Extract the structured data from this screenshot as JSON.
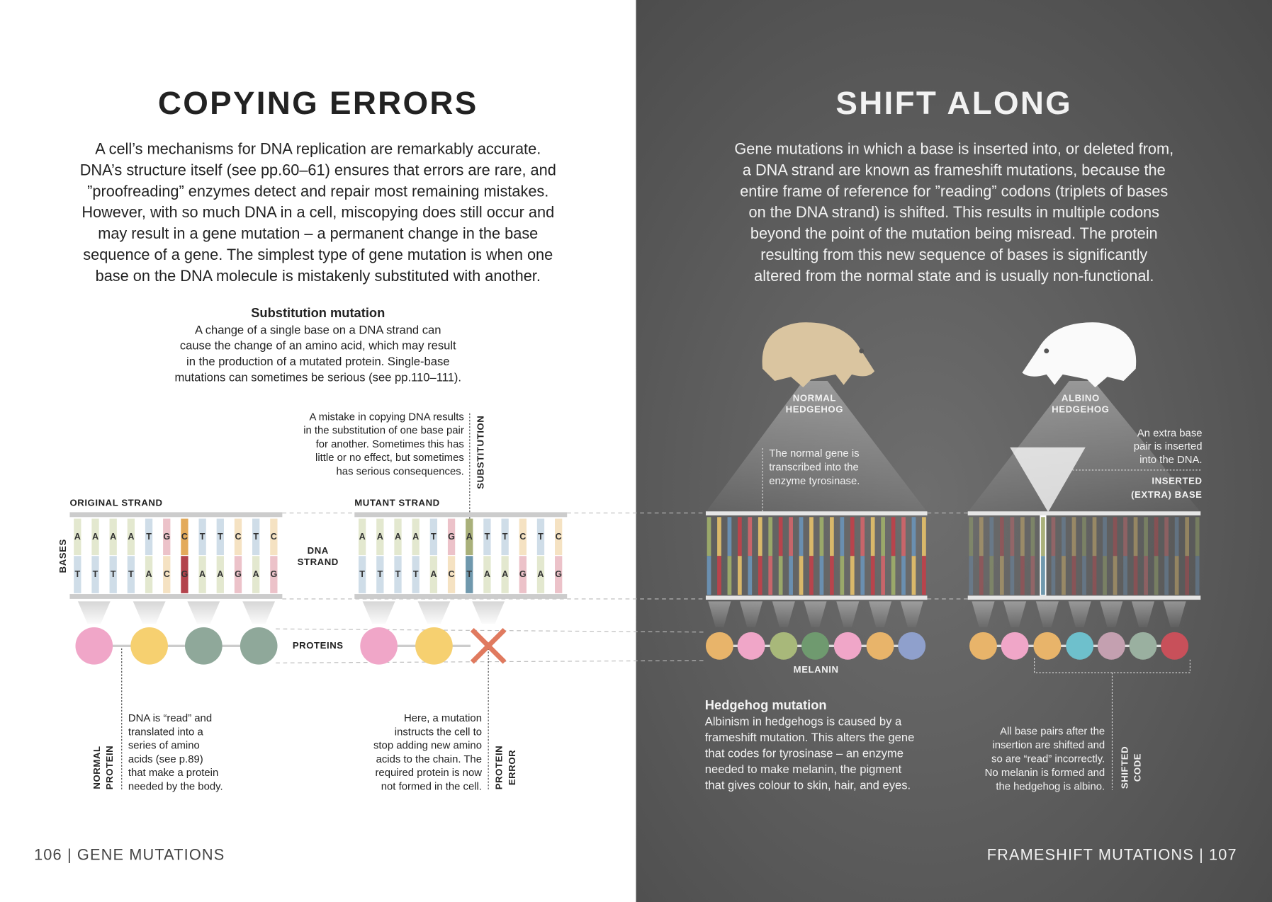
{
  "left_page": {
    "title": "COPYING ERRORS",
    "intro": [
      "A cell’s mechanisms for DNA replication are remarkably accurate.",
      "DNA’s structure itself (see pp.60–61) ensures that errors are rare, and",
      "”proofreading” enzymes detect and repair most remaining mistakes.",
      "However, with so much DNA in a cell, miscopying does still occur and",
      "may result in a gene mutation – a permanent change in the base",
      "sequence of a gene. The simplest type of gene mutation is when one",
      "base on the DNA molecule is mistakenly substituted with another."
    ],
    "substitution_mutation": {
      "heading": "Substitution mutation",
      "text": [
        "A change of a single base on a DNA strand can",
        "cause the change of an amino acid, which may result",
        "in the production of a mutated protein. Single-base",
        "mutations can sometimes be serious (see pp.110–111)."
      ]
    },
    "substitution_note": {
      "label": "SUBSTITUTION",
      "text": [
        "A mistake in copying DNA results",
        "in the substitution of one base pair",
        "for another. Sometimes this has",
        "little or no effect, but sometimes",
        "has serious consequences."
      ]
    },
    "original_strand": {
      "label": "ORIGINAL STRAND",
      "top": [
        "A",
        "A",
        "A",
        "A",
        "T",
        "G",
        "C",
        "T",
        "T",
        "C",
        "T",
        "C"
      ],
      "bottom": [
        "T",
        "T",
        "T",
        "T",
        "A",
        "C",
        "G",
        "A",
        "A",
        "G",
        "A",
        "G"
      ]
    },
    "mutant_strand": {
      "label": "MUTANT STRAND",
      "top": [
        "A",
        "A",
        "A",
        "A",
        "T",
        "G",
        "A",
        "T",
        "T",
        "C",
        "T",
        "C"
      ],
      "bottom": [
        "T",
        "T",
        "T",
        "T",
        "A",
        "C",
        "T",
        "A",
        "A",
        "G",
        "A",
        "G"
      ]
    },
    "bases_label": "BASES",
    "dna_strand_label": [
      "DNA",
      "STRAND"
    ],
    "proteins_label": "PROTEINS",
    "normal_protein": {
      "label": [
        "NORMAL",
        "PROTEIN"
      ],
      "text": [
        "DNA is “read” and",
        "translated into a",
        "series of amino",
        "acids (see p.89)",
        "that make a protein",
        "needed by the body."
      ]
    },
    "protein_error": {
      "label": [
        "PROTEIN",
        "ERROR"
      ],
      "text": [
        "Here, a mutation",
        "instructs the cell to",
        "stop adding new amino",
        "acids to the chain. The",
        "required protein is now",
        "not formed in the cell."
      ]
    },
    "footer": "106 | GENE MUTATIONS"
  },
  "right_page": {
    "title": "SHIFT ALONG",
    "intro": [
      "Gene mutations in which a base is inserted into, or deleted from,",
      "a DNA strand are known as frameshift mutations, because the",
      "entire frame of reference for ”reading” codons (triplets of bases",
      "on the DNA strand) is shifted. This results in multiple codons",
      "beyond the point of the mutation being misread. The protein",
      "resulting from this new sequence of bases is significantly",
      "altered from the normal state and is usually non-functional."
    ],
    "normal_hedgehog": [
      "NORMAL",
      "HEDGEHOG"
    ],
    "albino_hedgehog": [
      "ALBINO",
      "HEDGEHOG"
    ],
    "normal_gene_note": [
      "The normal gene is",
      "transcribed into the",
      "enzyme tyrosinase."
    ],
    "extra_base_note": [
      "An extra base",
      "pair is inserted",
      "into the DNA."
    ],
    "inserted_base_label": [
      "INSERTED",
      "(EXTRA) BASE"
    ],
    "melanin_label": "MELANIN",
    "hedgehog_mutation": {
      "heading": "Hedgehog mutation",
      "text": [
        "Albinism in hedgehogs is caused by a",
        "frameshift mutation. This alters the gene",
        "that codes for tyrosinase – an enzyme",
        "needed to make melanin, the pigment",
        "that gives colour to skin, hair, and eyes."
      ]
    },
    "shifted_code": {
      "label": [
        "SHIFTED",
        "CODE"
      ],
      "text": [
        "All base pairs after the",
        "insertion are shifted and",
        "so are “read” incorrectly.",
        "No melanin is formed and",
        "the hedgehog is albino."
      ]
    },
    "footer": "FRAMESHIFT MUTATIONS | 107"
  }
}
